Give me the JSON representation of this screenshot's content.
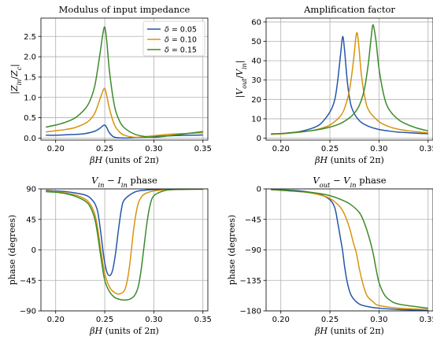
{
  "colors": {
    "blue": "#2457a8",
    "orange": "#d9930f",
    "green": "#3d8a2a",
    "grid": "#b0b0b0"
  },
  "chart_data": [
    {
      "id": "p1",
      "type": "line",
      "title": "Modulus of input impedance",
      "xlabel": "βH (units of 2π)",
      "ylabel": "|Z_in/Z_c|",
      "xlim": [
        0.185,
        0.355
      ],
      "ylim": [
        -0.05,
        2.95
      ],
      "xticks": [
        0.2,
        0.25,
        0.3,
        0.35
      ],
      "xtick_labels": [
        "0.20",
        "0.25",
        "0.30",
        "0.35"
      ],
      "yticks": [
        0.0,
        0.5,
        1.0,
        1.5,
        2.0,
        2.5
      ],
      "ytick_labels": [
        "0.0",
        "0.5",
        "1.0",
        "1.5",
        "2.0",
        "2.5"
      ],
      "grid": true,
      "legend": "top-right",
      "series": [
        {
          "name": "δ = 0.05",
          "color": "#2457a8",
          "x": [
            0.19,
            0.2,
            0.21,
            0.22,
            0.23,
            0.24,
            0.245,
            0.248,
            0.25,
            0.252,
            0.255,
            0.26,
            0.27,
            0.28,
            0.29,
            0.3,
            0.31,
            0.32,
            0.33,
            0.34,
            0.35
          ],
          "y": [
            0.07,
            0.07,
            0.08,
            0.09,
            0.11,
            0.17,
            0.24,
            0.3,
            0.32,
            0.26,
            0.12,
            0.02,
            0.0,
            0.01,
            0.02,
            0.04,
            0.05,
            0.06,
            0.065,
            0.07,
            0.075
          ]
        },
        {
          "name": "δ = 0.10",
          "color": "#d9930f",
          "x": [
            0.19,
            0.2,
            0.21,
            0.22,
            0.23,
            0.235,
            0.24,
            0.245,
            0.248,
            0.25,
            0.252,
            0.255,
            0.26,
            0.265,
            0.27,
            0.28,
            0.29,
            0.3,
            0.31,
            0.32,
            0.33,
            0.34,
            0.35
          ],
          "y": [
            0.15,
            0.18,
            0.21,
            0.26,
            0.36,
            0.45,
            0.62,
            0.95,
            1.15,
            1.22,
            1.05,
            0.7,
            0.32,
            0.15,
            0.07,
            0.02,
            0.03,
            0.06,
            0.08,
            0.1,
            0.11,
            0.12,
            0.13
          ]
        },
        {
          "name": "δ = 0.15",
          "color": "#3d8a2a",
          "x": [
            0.19,
            0.2,
            0.21,
            0.22,
            0.23,
            0.235,
            0.24,
            0.245,
            0.248,
            0.25,
            0.252,
            0.255,
            0.26,
            0.265,
            0.27,
            0.28,
            0.29,
            0.3,
            0.31,
            0.32,
            0.33,
            0.34,
            0.35
          ],
          "y": [
            0.27,
            0.32,
            0.39,
            0.5,
            0.72,
            0.92,
            1.3,
            2.05,
            2.55,
            2.73,
            2.4,
            1.6,
            0.78,
            0.42,
            0.25,
            0.1,
            0.04,
            0.02,
            0.04,
            0.07,
            0.1,
            0.13,
            0.16
          ]
        }
      ]
    },
    {
      "id": "p2",
      "type": "line",
      "title": "Amplification factor",
      "xlabel": "βH (units of 2π)",
      "ylabel": "|V_out/V_in|",
      "xlim": [
        0.185,
        0.355
      ],
      "ylim": [
        -1,
        62
      ],
      "xticks": [
        0.2,
        0.25,
        0.3,
        0.35
      ],
      "xtick_labels": [
        "0.20",
        "0.25",
        "0.30",
        "0.35"
      ],
      "yticks": [
        0,
        10,
        20,
        30,
        40,
        50,
        60
      ],
      "ytick_labels": [
        "0",
        "10",
        "20",
        "30",
        "40",
        "50",
        "60"
      ],
      "grid": true,
      "series": [
        {
          "name": "δ = 0.05",
          "color": "#2457a8",
          "x": [
            0.19,
            0.2,
            0.21,
            0.22,
            0.23,
            0.24,
            0.25,
            0.255,
            0.258,
            0.261,
            0.263,
            0.265,
            0.268,
            0.272,
            0.28,
            0.29,
            0.3,
            0.31,
            0.32,
            0.33,
            0.34,
            0.35
          ],
          "y": [
            2.0,
            2.3,
            2.8,
            3.5,
            4.8,
            7.2,
            13.5,
            20.0,
            30.0,
            44.0,
            52.5,
            45.0,
            28.0,
            16.0,
            9.0,
            6.0,
            4.5,
            3.7,
            3.1,
            2.8,
            2.5,
            2.3
          ]
        },
        {
          "name": "δ = 0.10",
          "color": "#d9930f",
          "x": [
            0.19,
            0.2,
            0.21,
            0.22,
            0.23,
            0.24,
            0.25,
            0.26,
            0.265,
            0.27,
            0.274,
            0.277,
            0.279,
            0.282,
            0.286,
            0.29,
            0.3,
            0.31,
            0.32,
            0.33,
            0.34,
            0.35
          ],
          "y": [
            2.0,
            2.2,
            2.6,
            3.1,
            3.8,
            4.9,
            6.8,
            11.0,
            15.5,
            25.0,
            40.0,
            54.0,
            50.0,
            33.0,
            20.0,
            14.0,
            8.5,
            6.0,
            4.6,
            3.8,
            3.2,
            2.8
          ]
        },
        {
          "name": "δ = 0.15",
          "color": "#3d8a2a",
          "x": [
            0.19,
            0.2,
            0.21,
            0.22,
            0.23,
            0.24,
            0.25,
            0.26,
            0.27,
            0.275,
            0.28,
            0.285,
            0.289,
            0.292,
            0.294,
            0.297,
            0.3,
            0.305,
            0.31,
            0.32,
            0.33,
            0.34,
            0.35
          ],
          "y": [
            2.2,
            2.4,
            2.8,
            3.2,
            3.8,
            4.6,
            5.7,
            7.4,
            10.5,
            13.0,
            17.0,
            25.0,
            38.0,
            52.0,
            58.5,
            50.0,
            36.0,
            22.0,
            15.0,
            9.5,
            6.8,
            5.0,
            3.8
          ]
        }
      ]
    },
    {
      "id": "p3",
      "type": "line",
      "title": "V_in − I_in phase",
      "xlabel": "βH (units of 2π)",
      "ylabel": "phase (degrees)",
      "xlim": [
        0.185,
        0.355
      ],
      "ylim": [
        -90,
        90
      ],
      "xticks": [
        0.2,
        0.25,
        0.3,
        0.35
      ],
      "xtick_labels": [
        "0.20",
        "0.25",
        "0.30",
        "0.35"
      ],
      "yticks": [
        -90,
        -45,
        0,
        45,
        90
      ],
      "ytick_labels": [
        "−90",
        "−45",
        "0",
        "45",
        "90"
      ],
      "grid": true,
      "series": [
        {
          "name": "δ = 0.05",
          "color": "#2457a8",
          "x": [
            0.19,
            0.2,
            0.21,
            0.22,
            0.23,
            0.235,
            0.24,
            0.243,
            0.246,
            0.249,
            0.252,
            0.255,
            0.258,
            0.261,
            0.264,
            0.267,
            0.27,
            0.28,
            0.29,
            0.3,
            0.32,
            0.35
          ],
          "y": [
            88,
            87,
            86,
            84,
            81,
            77,
            68,
            55,
            25,
            -10,
            -32,
            -38,
            -30,
            -5,
            30,
            60,
            74,
            85,
            88,
            89,
            89.5,
            89.8
          ]
        },
        {
          "name": "δ = 0.10",
          "color": "#d9930f",
          "x": [
            0.19,
            0.2,
            0.21,
            0.22,
            0.23,
            0.235,
            0.24,
            0.243,
            0.246,
            0.25,
            0.255,
            0.26,
            0.265,
            0.27,
            0.273,
            0.276,
            0.279,
            0.282,
            0.285,
            0.29,
            0.3,
            0.32,
            0.35
          ],
          "y": [
            87,
            86,
            84,
            81,
            75,
            68,
            52,
            30,
            0,
            -35,
            -55,
            -63,
            -65,
            -60,
            -45,
            -15,
            25,
            55,
            72,
            82,
            87,
            89,
            89.6
          ]
        },
        {
          "name": "δ = 0.15",
          "color": "#3d8a2a",
          "x": [
            0.19,
            0.2,
            0.21,
            0.22,
            0.23,
            0.235,
            0.24,
            0.243,
            0.246,
            0.25,
            0.255,
            0.26,
            0.265,
            0.27,
            0.275,
            0.28,
            0.284,
            0.287,
            0.29,
            0.293,
            0.296,
            0.3,
            0.31,
            0.32,
            0.35
          ],
          "y": [
            86,
            85,
            83,
            79,
            72,
            64,
            45,
            20,
            -10,
            -45,
            -62,
            -70,
            -73,
            -74,
            -73,
            -68,
            -55,
            -30,
            5,
            40,
            65,
            80,
            87,
            89,
            89.6
          ]
        }
      ]
    },
    {
      "id": "p4",
      "type": "line",
      "title": "V_out − V_in phase",
      "xlabel": "βH (units of 2π)",
      "ylabel": "phase (degrees)",
      "xlim": [
        0.185,
        0.355
      ],
      "ylim": [
        -180,
        0
      ],
      "xticks": [
        0.2,
        0.25,
        0.3,
        0.35
      ],
      "xtick_labels": [
        "0.20",
        "0.25",
        "0.30",
        "0.35"
      ],
      "yticks": [
        -180,
        -135,
        -90,
        -45,
        0
      ],
      "ytick_labels": [
        "−180",
        "−135",
        "−90",
        "−45",
        "0"
      ],
      "grid": true,
      "series": [
        {
          "name": "δ = 0.05",
          "color": "#2457a8",
          "x": [
            0.19,
            0.2,
            0.21,
            0.22,
            0.23,
            0.24,
            0.25,
            0.255,
            0.258,
            0.261,
            0.263,
            0.265,
            0.268,
            0.272,
            0.28,
            0.29,
            0.3,
            0.32,
            0.35
          ],
          "y": [
            -1,
            -1.5,
            -2,
            -3,
            -5,
            -8,
            -16,
            -28,
            -50,
            -75,
            -92,
            -115,
            -140,
            -158,
            -170,
            -174,
            -176,
            -178,
            -179
          ]
        },
        {
          "name": "δ = 0.10",
          "color": "#d9930f",
          "x": [
            0.19,
            0.2,
            0.21,
            0.22,
            0.23,
            0.24,
            0.25,
            0.26,
            0.265,
            0.27,
            0.274,
            0.277,
            0.28,
            0.284,
            0.288,
            0.295,
            0.3,
            0.32,
            0.35
          ],
          "y": [
            -1,
            -2,
            -3,
            -4,
            -6,
            -9,
            -14,
            -26,
            -38,
            -58,
            -80,
            -95,
            -118,
            -142,
            -158,
            -168,
            -172,
            -176,
            -178
          ]
        },
        {
          "name": "δ = 0.15",
          "color": "#3d8a2a",
          "x": [
            0.19,
            0.2,
            0.21,
            0.22,
            0.23,
            0.24,
            0.25,
            0.26,
            0.27,
            0.28,
            0.285,
            0.29,
            0.294,
            0.297,
            0.3,
            0.305,
            0.31,
            0.32,
            0.35
          ],
          "y": [
            -1,
            -2,
            -3,
            -4,
            -5,
            -7,
            -10,
            -15,
            -22,
            -35,
            -50,
            -72,
            -95,
            -118,
            -138,
            -155,
            -163,
            -170,
            -176
          ]
        }
      ]
    }
  ]
}
